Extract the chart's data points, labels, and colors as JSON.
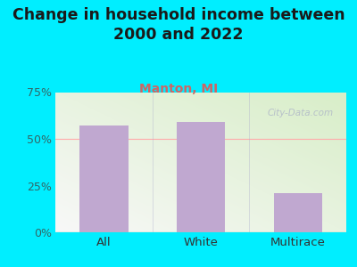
{
  "title": "Change in household income between\n2000 and 2022",
  "subtitle": "Manton, MI",
  "categories": [
    "All",
    "White",
    "Multirace"
  ],
  "values": [
    57,
    59,
    21
  ],
  "bar_color": "#c0a8d0",
  "title_fontsize": 12.5,
  "subtitle_fontsize": 10,
  "subtitle_color": "#cc6666",
  "title_color": "#1a1a1a",
  "background_outer": "#00eeff",
  "ylim": [
    0,
    75
  ],
  "yticks": [
    0,
    25,
    50,
    75
  ],
  "ytick_labels": [
    "0%",
    "25%",
    "50%",
    "75%"
  ],
  "watermark": "City-Data.com",
  "tick_color": "#336666",
  "grid_color": "#ffaaaa",
  "plot_bg_left_bottom": "#d8eec8",
  "plot_bg_right_top": "#f8f8f8",
  "bottom_line_color": "#aaccaa",
  "divider_color": "#aaaacc"
}
